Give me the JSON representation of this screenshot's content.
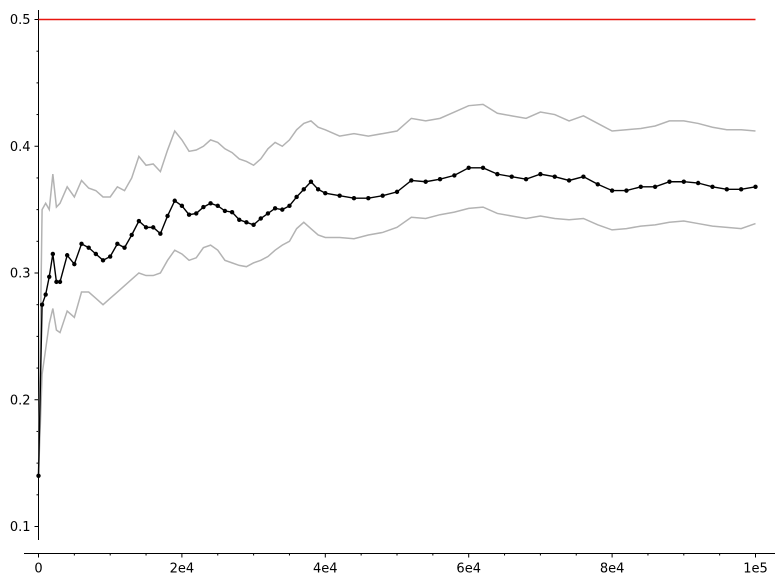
{
  "chart_data": {
    "type": "line",
    "title": "",
    "xlabel": "",
    "ylabel": "",
    "xlim": [
      0,
      100000
    ],
    "ylim": [
      0.09,
      0.51
    ],
    "x_ticks": [
      0,
      20000,
      40000,
      60000,
      80000,
      100000
    ],
    "x_tick_labels": [
      "0",
      "2e4",
      "4e4",
      "6e4",
      "8e4",
      "1e5"
    ],
    "y_ticks": [
      0.1,
      0.2,
      0.3,
      0.4,
      0.5
    ],
    "y_tick_labels": [
      "0.1",
      "0.2",
      "0.3",
      "0.4",
      "0.5"
    ],
    "grid": false,
    "colors": {
      "reference": "#e8150f",
      "estimate": "#000000",
      "bounds": "#b3b3b3"
    },
    "reference_line": {
      "y": 0.5
    },
    "x": [
      0,
      500,
      1000,
      1500,
      2000,
      2500,
      3000,
      4000,
      5000,
      6000,
      7000,
      8000,
      9000,
      10000,
      11000,
      12000,
      13000,
      14000,
      15000,
      16000,
      17000,
      18000,
      19000,
      20000,
      21000,
      22000,
      23000,
      24000,
      25000,
      26000,
      27000,
      28000,
      29000,
      30000,
      31000,
      32000,
      33000,
      34000,
      35000,
      36000,
      37000,
      38000,
      39000,
      40000,
      42000,
      44000,
      46000,
      48000,
      50000,
      52000,
      54000,
      56000,
      58000,
      60000,
      62000,
      64000,
      66000,
      68000,
      70000,
      72000,
      74000,
      76000,
      78000,
      80000,
      82000,
      84000,
      86000,
      88000,
      90000,
      92000,
      94000,
      96000,
      98000,
      100000
    ],
    "series": [
      {
        "values": [
          0.14,
          0.275,
          0.283,
          0.297,
          0.315,
          0.293,
          0.293,
          0.314,
          0.307,
          0.323,
          0.32,
          0.315,
          0.31,
          0.313,
          0.323,
          0.32,
          0.33,
          0.341,
          0.336,
          0.336,
          0.331,
          0.345,
          0.357,
          0.353,
          0.346,
          0.347,
          0.352,
          0.355,
          0.353,
          0.349,
          0.348,
          0.342,
          0.34,
          0.338,
          0.343,
          0.347,
          0.351,
          0.35,
          0.353,
          0.36,
          0.366,
          0.372,
          0.366,
          0.363,
          0.361,
          0.359,
          0.359,
          0.361,
          0.364,
          0.373,
          0.372,
          0.374,
          0.377,
          0.383,
          0.383,
          0.378,
          0.376,
          0.374,
          0.378,
          0.376,
          0.373,
          0.376,
          0.37,
          0.365,
          0.365,
          0.368,
          0.368,
          0.372,
          0.372,
          0.371,
          0.368,
          0.366,
          0.366,
          0.368
        ]
      },
      {
        "values": [
          0.14,
          0.22,
          0.24,
          0.26,
          0.272,
          0.255,
          0.253,
          0.27,
          0.265,
          0.285,
          0.285,
          0.28,
          0.275,
          0.28,
          0.285,
          0.29,
          0.295,
          0.3,
          0.298,
          0.298,
          0.3,
          0.31,
          0.318,
          0.315,
          0.31,
          0.312,
          0.32,
          0.322,
          0.318,
          0.31,
          0.308,
          0.306,
          0.305,
          0.308,
          0.31,
          0.313,
          0.318,
          0.322,
          0.325,
          0.335,
          0.34,
          0.335,
          0.33,
          0.328,
          0.328,
          0.327,
          0.33,
          0.332,
          0.336,
          0.344,
          0.343,
          0.346,
          0.348,
          0.351,
          0.352,
          0.347,
          0.345,
          0.343,
          0.345,
          0.343,
          0.342,
          0.343,
          0.338,
          0.334,
          0.335,
          0.337,
          0.338,
          0.34,
          0.341,
          0.339,
          0.337,
          0.336,
          0.335,
          0.339
        ]
      },
      {
        "values": [
          0.14,
          0.35,
          0.355,
          0.35,
          0.378,
          0.352,
          0.355,
          0.368,
          0.36,
          0.373,
          0.367,
          0.365,
          0.36,
          0.36,
          0.368,
          0.365,
          0.375,
          0.392,
          0.385,
          0.386,
          0.38,
          0.397,
          0.412,
          0.405,
          0.396,
          0.397,
          0.4,
          0.405,
          0.403,
          0.398,
          0.395,
          0.39,
          0.388,
          0.385,
          0.39,
          0.398,
          0.403,
          0.4,
          0.405,
          0.413,
          0.418,
          0.42,
          0.415,
          0.413,
          0.408,
          0.41,
          0.408,
          0.41,
          0.412,
          0.422,
          0.42,
          0.422,
          0.427,
          0.432,
          0.433,
          0.426,
          0.424,
          0.422,
          0.427,
          0.425,
          0.42,
          0.424,
          0.418,
          0.412,
          0.413,
          0.414,
          0.416,
          0.42,
          0.42,
          0.418,
          0.415,
          0.413,
          0.413,
          0.412
        ]
      }
    ]
  }
}
